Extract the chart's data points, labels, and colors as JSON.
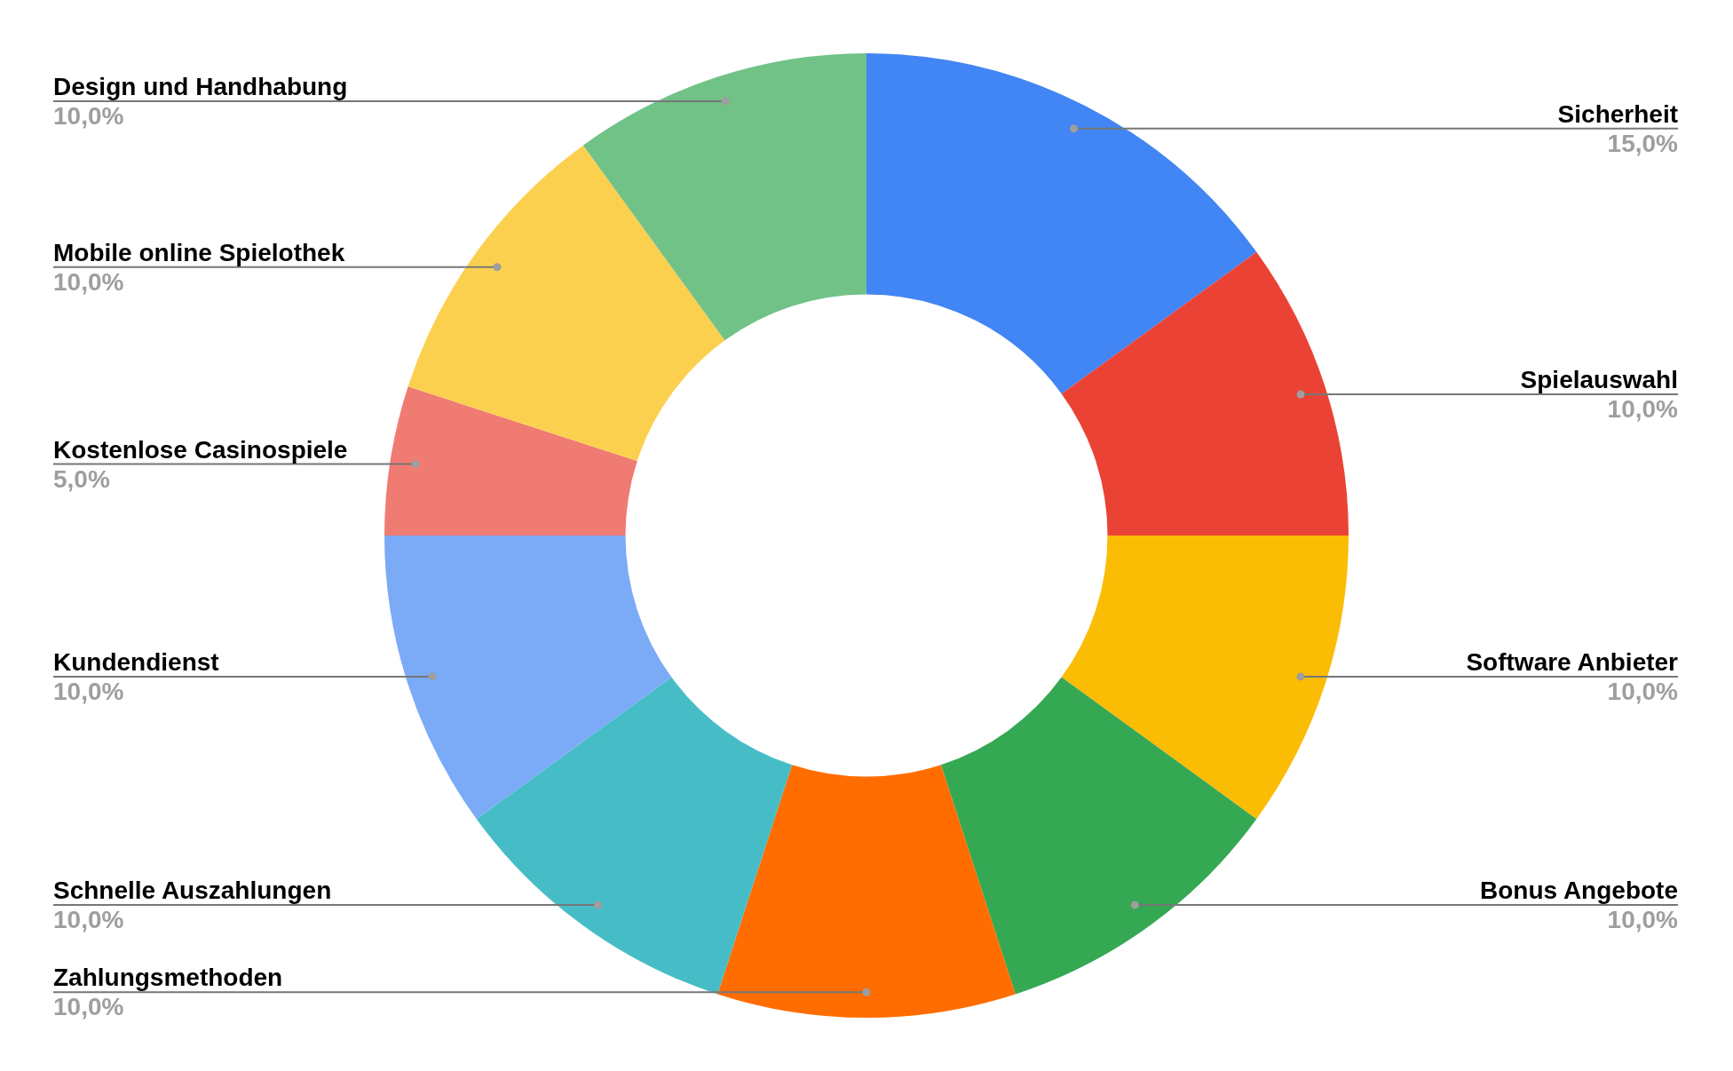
{
  "chart_data": {
    "type": "donut",
    "categories": [
      "Sicherheit",
      "Spielauswahl",
      "Software Anbieter",
      "Bonus Angebote",
      "Zahlungsmethoden",
      "Schnelle Auszahlungen",
      "Kundendienst",
      "Kostenlose Casinospiele",
      "Mobile online Spielothek",
      "Design und Handhabung"
    ],
    "values": [
      15,
      10,
      10,
      10,
      10,
      10,
      10,
      5,
      10,
      10
    ],
    "colors": [
      "#4285f4",
      "#ea4335",
      "#fbbc04",
      "#34a853",
      "#ff6d01",
      "#46bdc6",
      "#7baaf7",
      "#f07b72",
      "#fcd04f",
      "#71c287"
    ],
    "value_labels": [
      "15,0%",
      "10,0%",
      "10,0%",
      "10,0%",
      "10,0%",
      "10,0%",
      "10,0%",
      "5,0%",
      "10,0%",
      "10,0%"
    ]
  }
}
